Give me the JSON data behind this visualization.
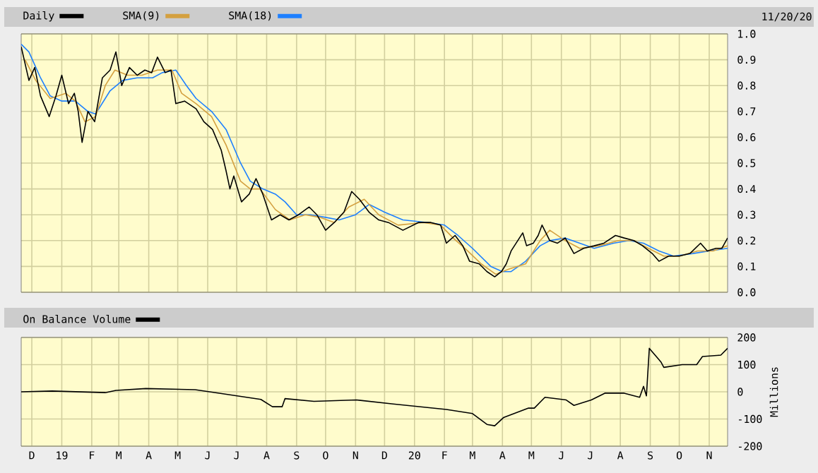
{
  "chart_data": [
    {
      "type": "line",
      "annotations": [
        "11/20/20"
      ],
      "legend": "top left",
      "grid": true,
      "tick_labels": "y",
      "xlim": [
        "2018-11-20",
        "2020-11-20"
      ],
      "xticks": [
        {
          "value": "2018-12-01",
          "label": null
        },
        {
          "value": "2019-01-01",
          "label": null
        },
        {
          "value": "2019-02-01",
          "label": null
        },
        {
          "value": "2019-03-01",
          "label": null
        },
        {
          "value": "2019-04-01",
          "label": null
        },
        {
          "value": "2019-05-01",
          "label": null
        },
        {
          "value": "2019-06-01",
          "label": null
        },
        {
          "value": "2019-07-01",
          "label": null
        },
        {
          "value": "2019-08-01",
          "label": null
        },
        {
          "value": "2019-09-01",
          "label": null
        },
        {
          "value": "2019-10-01",
          "label": null
        },
        {
          "value": "2019-11-01",
          "label": null
        },
        {
          "value": "2019-12-01",
          "label": null
        },
        {
          "value": "2020-01-01",
          "label": null
        },
        {
          "value": "2020-02-01",
          "label": null
        },
        {
          "value": "2020-03-01",
          "label": null
        },
        {
          "value": "2020-04-01",
          "label": null
        },
        {
          "value": "2020-05-01",
          "label": null
        },
        {
          "value": "2020-06-01",
          "label": null
        },
        {
          "value": "2020-07-01",
          "label": null
        },
        {
          "value": "2020-08-01",
          "label": null
        },
        {
          "value": "2020-09-01",
          "label": null
        },
        {
          "value": "2020-10-01",
          "label": null
        },
        {
          "value": "2020-11-01",
          "label": null
        }
      ],
      "ylim": [
        0,
        1
      ],
      "yticks": [
        {
          "value": 0,
          "label": "0.0"
        },
        {
          "value": 0.1,
          "label": "0.1"
        },
        {
          "value": 0.2,
          "label": "0.2"
        },
        {
          "value": 0.3,
          "label": "0.3"
        },
        {
          "value": 0.4,
          "label": "0.4"
        },
        {
          "value": 0.5,
          "label": "0.5"
        },
        {
          "value": 0.6,
          "label": "0.6"
        },
        {
          "value": 0.7,
          "label": "0.7"
        },
        {
          "value": 0.8,
          "label": "0.8"
        },
        {
          "value": 0.9,
          "label": "0.9"
        },
        {
          "value": 1,
          "label": "1.0"
        }
      ],
      "series": [
        {
          "name": "Daily",
          "color": "#000000",
          "x": [
            "2018-11-20",
            "2018-11-28",
            "2018-12-04",
            "2018-12-10",
            "2018-12-19",
            "2018-12-26",
            "2019-01-01",
            "2019-01-08",
            "2019-01-14",
            "2019-01-18",
            "2019-01-22",
            "2019-01-28",
            "2019-02-04",
            "2019-02-12",
            "2019-02-20",
            "2019-02-26",
            "2019-03-04",
            "2019-03-12",
            "2019-03-20",
            "2019-03-28",
            "2019-04-04",
            "2019-04-10",
            "2019-04-18",
            "2019-04-24",
            "2019-04-29",
            "2019-05-08",
            "2019-05-20",
            "2019-05-28",
            "2019-06-06",
            "2019-06-15",
            "2019-06-20",
            "2019-06-24",
            "2019-06-28",
            "2019-07-06",
            "2019-07-14",
            "2019-07-21",
            "2019-07-28",
            "2019-08-06",
            "2019-08-15",
            "2019-08-24",
            "2019-09-03",
            "2019-09-14",
            "2019-09-22",
            "2019-10-01",
            "2019-10-10",
            "2019-10-20",
            "2019-10-28",
            "2019-11-05",
            "2019-11-15",
            "2019-11-25",
            "2019-12-05",
            "2019-12-20",
            "2020-01-05",
            "2020-01-18",
            "2020-01-28",
            "2020-02-03",
            "2020-02-12",
            "2020-02-20",
            "2020-02-27",
            "2020-03-08",
            "2020-03-16",
            "2020-03-24",
            "2020-03-31",
            "2020-04-05",
            "2020-04-10",
            "2020-04-22",
            "2020-04-26",
            "2020-05-03",
            "2020-05-08",
            "2020-05-12",
            "2020-05-20",
            "2020-05-28",
            "2020-06-05",
            "2020-06-14",
            "2020-06-24",
            "2020-07-05",
            "2020-07-15",
            "2020-07-27",
            "2020-08-05",
            "2020-08-15",
            "2020-08-24",
            "2020-09-03",
            "2020-09-10",
            "2020-09-20",
            "2020-10-01",
            "2020-10-12",
            "2020-10-23",
            "2020-10-30",
            "2020-11-08",
            "2020-11-14",
            "2020-11-20"
          ],
          "values": [
            0.95,
            0.82,
            0.87,
            0.76,
            0.68,
            0.76,
            0.84,
            0.73,
            0.77,
            0.7,
            0.58,
            0.7,
            0.66,
            0.83,
            0.86,
            0.93,
            0.8,
            0.87,
            0.84,
            0.86,
            0.85,
            0.91,
            0.85,
            0.86,
            0.73,
            0.74,
            0.71,
            0.66,
            0.63,
            0.55,
            0.47,
            0.4,
            0.45,
            0.35,
            0.38,
            0.44,
            0.38,
            0.28,
            0.3,
            0.28,
            0.3,
            0.33,
            0.3,
            0.24,
            0.27,
            0.31,
            0.39,
            0.36,
            0.31,
            0.28,
            0.27,
            0.24,
            0.27,
            0.27,
            0.26,
            0.19,
            0.22,
            0.18,
            0.12,
            0.11,
            0.08,
            0.06,
            0.08,
            0.11,
            0.16,
            0.23,
            0.18,
            0.19,
            0.22,
            0.26,
            0.2,
            0.19,
            0.21,
            0.15,
            0.17,
            0.18,
            0.19,
            0.22,
            0.21,
            0.2,
            0.18,
            0.15,
            0.12,
            0.14,
            0.14,
            0.15,
            0.19,
            0.16,
            0.17,
            0.17,
            0.21
          ]
        },
        {
          "name": "SMA(9)",
          "color": "#d4a040",
          "x": [
            "2018-11-24",
            "2018-12-05",
            "2018-12-20",
            "2019-01-05",
            "2019-01-15",
            "2019-01-25",
            "2019-02-05",
            "2019-02-15",
            "2019-02-25",
            "2019-03-10",
            "2019-03-25",
            "2019-04-10",
            "2019-04-25",
            "2019-05-05",
            "2019-05-20",
            "2019-06-05",
            "2019-06-20",
            "2019-07-05",
            "2019-07-15",
            "2019-07-25",
            "2019-08-10",
            "2019-08-25",
            "2019-09-10",
            "2019-09-25",
            "2019-10-10",
            "2019-10-25",
            "2019-11-10",
            "2019-11-25",
            "2019-12-15",
            "2020-01-10",
            "2020-01-28",
            "2020-02-10",
            "2020-02-25",
            "2020-03-10",
            "2020-03-25",
            "2020-04-08",
            "2020-04-25",
            "2020-05-10",
            "2020-05-20",
            "2020-06-05",
            "2020-06-20",
            "2020-07-10",
            "2020-07-30",
            "2020-08-15",
            "2020-08-30",
            "2020-09-15",
            "2020-10-01",
            "2020-10-20",
            "2020-11-05",
            "2020-11-20"
          ],
          "values": [
            0.9,
            0.82,
            0.75,
            0.77,
            0.74,
            0.66,
            0.68,
            0.8,
            0.86,
            0.84,
            0.84,
            0.86,
            0.86,
            0.77,
            0.73,
            0.68,
            0.57,
            0.43,
            0.4,
            0.4,
            0.32,
            0.28,
            0.3,
            0.29,
            0.27,
            0.33,
            0.36,
            0.3,
            0.26,
            0.27,
            0.26,
            0.21,
            0.16,
            0.11,
            0.07,
            0.09,
            0.11,
            0.2,
            0.24,
            0.2,
            0.17,
            0.18,
            0.2,
            0.2,
            0.17,
            0.14,
            0.14,
            0.16,
            0.16,
            0.18
          ]
        },
        {
          "name": "SMA(18)",
          "color": "#1e80ff",
          "x": [
            "2018-11-20",
            "2018-11-28",
            "2018-12-10",
            "2018-12-20",
            "2019-01-01",
            "2019-01-15",
            "2019-01-28",
            "2019-02-05",
            "2019-02-20",
            "2019-03-05",
            "2019-03-20",
            "2019-04-05",
            "2019-04-15",
            "2019-04-29",
            "2019-05-10",
            "2019-05-20",
            "2019-06-05",
            "2019-06-20",
            "2019-07-05",
            "2019-07-15",
            "2019-07-28",
            "2019-08-10",
            "2019-08-20",
            "2019-09-01",
            "2019-09-15",
            "2019-10-01",
            "2019-10-15",
            "2019-11-01",
            "2019-11-15",
            "2019-12-01",
            "2019-12-20",
            "2020-01-15",
            "2020-02-01",
            "2020-02-15",
            "2020-03-01",
            "2020-03-20",
            "2020-04-01",
            "2020-04-10",
            "2020-04-25",
            "2020-05-10",
            "2020-05-20",
            "2020-06-05",
            "2020-06-20",
            "2020-07-05",
            "2020-07-25",
            "2020-08-10",
            "2020-08-25",
            "2020-09-10",
            "2020-09-25",
            "2020-10-15",
            "2020-11-01",
            "2020-11-20"
          ],
          "values": [
            0.96,
            0.93,
            0.83,
            0.76,
            0.74,
            0.74,
            0.7,
            0.69,
            0.78,
            0.82,
            0.83,
            0.83,
            0.85,
            0.86,
            0.8,
            0.75,
            0.7,
            0.63,
            0.5,
            0.43,
            0.4,
            0.38,
            0.35,
            0.3,
            0.3,
            0.29,
            0.28,
            0.3,
            0.34,
            0.31,
            0.28,
            0.27,
            0.26,
            0.22,
            0.17,
            0.1,
            0.08,
            0.08,
            0.12,
            0.18,
            0.2,
            0.21,
            0.19,
            0.17,
            0.19,
            0.2,
            0.19,
            0.16,
            0.14,
            0.15,
            0.16,
            0.17
          ]
        }
      ]
    },
    {
      "type": "line",
      "legend": "top left",
      "grid": true,
      "ylabel": "Millions",
      "xlim": [
        "2018-11-20",
        "2020-11-20"
      ],
      "xticks": [
        {
          "value": "2018-12-01",
          "label": "D"
        },
        {
          "value": "2019-01-01",
          "label": "19"
        },
        {
          "value": "2019-02-01",
          "label": "F"
        },
        {
          "value": "2019-03-01",
          "label": "M"
        },
        {
          "value": "2019-04-01",
          "label": "A"
        },
        {
          "value": "2019-05-01",
          "label": "M"
        },
        {
          "value": "2019-06-01",
          "label": "J"
        },
        {
          "value": "2019-07-01",
          "label": "J"
        },
        {
          "value": "2019-08-01",
          "label": "A"
        },
        {
          "value": "2019-09-01",
          "label": "S"
        },
        {
          "value": "2019-10-01",
          "label": "O"
        },
        {
          "value": "2019-11-01",
          "label": "N"
        },
        {
          "value": "2019-12-01",
          "label": "D"
        },
        {
          "value": "2020-01-01",
          "label": "20"
        },
        {
          "value": "2020-02-01",
          "label": "F"
        },
        {
          "value": "2020-03-01",
          "label": "M"
        },
        {
          "value": "2020-04-01",
          "label": "A"
        },
        {
          "value": "2020-05-01",
          "label": "M"
        },
        {
          "value": "2020-06-01",
          "label": "J"
        },
        {
          "value": "2020-07-01",
          "label": "J"
        },
        {
          "value": "2020-08-01",
          "label": "A"
        },
        {
          "value": "2020-09-01",
          "label": "S"
        },
        {
          "value": "2020-10-01",
          "label": "O"
        },
        {
          "value": "2020-11-01",
          "label": "N"
        }
      ],
      "ylim": [
        -200,
        200
      ],
      "yticks": [
        -200,
        -100,
        0,
        100,
        200
      ],
      "series": [
        {
          "name": "On Balance Volume",
          "color": "#000000",
          "x": [
            "2018-11-20",
            "2018-12-22",
            "2019-02-15",
            "2019-02-26",
            "2019-03-29",
            "2019-05-19",
            "2019-06-13",
            "2019-07-26",
            "2019-08-07",
            "2019-08-17",
            "2019-08-20",
            "2019-09-19",
            "2019-11-02",
            "2019-12-10",
            "2020-02-03",
            "2020-03-01",
            "2020-03-16",
            "2020-03-24",
            "2020-04-02",
            "2020-04-28",
            "2020-05-04",
            "2020-05-15",
            "2020-06-06",
            "2020-06-14",
            "2020-07-02",
            "2020-07-16",
            "2020-08-05",
            "2020-08-21",
            "2020-08-25",
            "2020-08-28",
            "2020-08-31",
            "2020-09-12",
            "2020-09-15",
            "2020-10-04",
            "2020-10-19",
            "2020-10-25",
            "2020-11-13",
            "2020-11-20"
          ],
          "values": [
            0,
            3,
            -3,
            5,
            12,
            8,
            -5,
            -28,
            -55,
            -55,
            -25,
            -35,
            -30,
            -45,
            -65,
            -80,
            -120,
            -125,
            -95,
            -60,
            -60,
            -20,
            -30,
            -50,
            -30,
            -5,
            -5,
            -20,
            20,
            -15,
            160,
            110,
            90,
            100,
            100,
            130,
            135,
            160
          ]
        }
      ]
    }
  ]
}
